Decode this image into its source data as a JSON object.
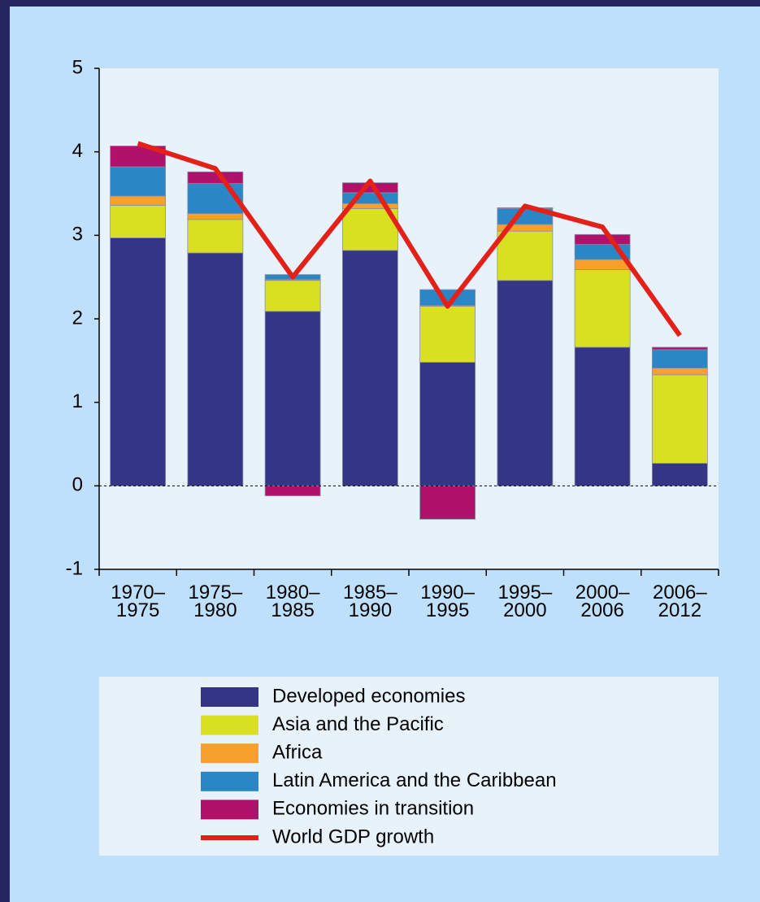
{
  "chart_data": {
    "type": "bar",
    "stacked": true,
    "categories": [
      "1970–\n1975",
      "1975–\n1980",
      "1980–\n1985",
      "1985–\n1990",
      "1990–\n1995",
      "1995–\n2000",
      "2000–\n2006",
      "2006–\n2012"
    ],
    "series": [
      {
        "name": "Developed economies",
        "color": "#343585",
        "values": [
          2.97,
          2.79,
          2.09,
          2.82,
          1.48,
          2.46,
          1.66,
          0.27
        ]
      },
      {
        "name": "Asia and the Pacific",
        "color": "#d9e021",
        "values": [
          0.39,
          0.4,
          0.37,
          0.5,
          0.67,
          0.59,
          0.93,
          1.06
        ]
      },
      {
        "name": "Africa",
        "color": "#f7a12a",
        "values": [
          0.11,
          0.07,
          0.01,
          0.06,
          0.01,
          0.08,
          0.12,
          0.08
        ]
      },
      {
        "name": "Latin America and the Caribbean",
        "color": "#2b86c5",
        "values": [
          0.35,
          0.36,
          0.06,
          0.13,
          0.19,
          0.19,
          0.18,
          0.22
        ]
      },
      {
        "name": "Economies in transition",
        "color": "#b0116b",
        "values": [
          0.25,
          0.14,
          -0.12,
          0.12,
          -0.4,
          0.01,
          0.12,
          0.03
        ]
      },
      {
        "name": "World GDP growth",
        "color": "#e32119",
        "type": "line",
        "values": [
          4.1,
          3.8,
          2.5,
          3.65,
          2.15,
          3.35,
          3.1,
          1.8
        ]
      }
    ],
    "ylim": [
      -1,
      5
    ],
    "yticks": [
      -1,
      0,
      1,
      2,
      3,
      4,
      5
    ]
  }
}
